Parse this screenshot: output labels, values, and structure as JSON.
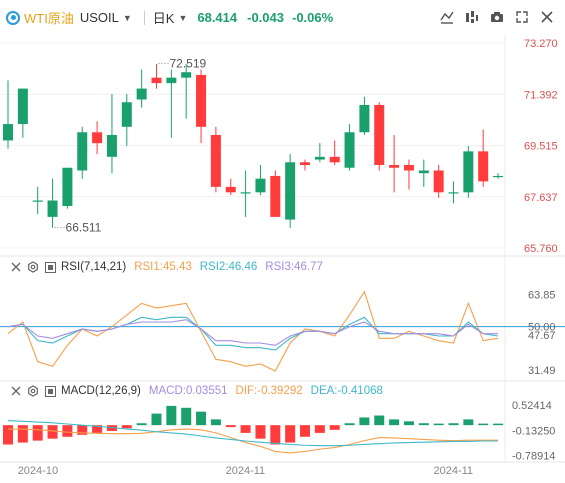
{
  "header": {
    "symbol_name": "WTI原油",
    "ticker": "USOIL",
    "timeframe": "日K",
    "price": "68.414",
    "change": "-0.043",
    "change_pct": "-0.06%",
    "colors": {
      "up": "#ff3b3b",
      "down": "#1aa06d",
      "accent": "#2a9bd9"
    },
    "icons": [
      "line-style-icon",
      "indicator-icon",
      "camera-icon",
      "expand-icon",
      "close-icon"
    ]
  },
  "rsi_legend": {
    "name": "RSI(7,14,21)",
    "rsi1": "RSI1:45.43",
    "rsi2": "RSI2:46.46",
    "rsi3": "RSI3:46.77"
  },
  "macd_legend": {
    "name": "MACD(12,26,9)",
    "macd": "MACD:0.03551",
    "dif": "DIF:-0.39292",
    "dea": "DEA:-0.41068"
  },
  "chart_data": [
    {
      "type": "candlestick",
      "name": "price",
      "ylim": [
        65.76,
        73.27
      ],
      "y_ticks": [
        "73.270",
        "71.392",
        "69.515",
        "67.637",
        "65.760"
      ],
      "annotations": [
        {
          "label": "72.519",
          "value": 72.519
        },
        {
          "label": "66.511",
          "value": 66.511
        }
      ],
      "candles": [
        {
          "o": 69.7,
          "h": 71.9,
          "l": 69.4,
          "c": 70.3
        },
        {
          "o": 70.3,
          "h": 71.6,
          "l": 69.8,
          "c": 71.6
        },
        {
          "o": 67.5,
          "h": 68.0,
          "l": 67.0,
          "c": 67.5
        },
        {
          "o": 66.9,
          "h": 68.3,
          "l": 66.5,
          "c": 67.5
        },
        {
          "o": 67.3,
          "h": 68.7,
          "l": 67.2,
          "c": 68.7
        },
        {
          "o": 68.6,
          "h": 70.2,
          "l": 68.3,
          "c": 70.0
        },
        {
          "o": 70.0,
          "h": 70.4,
          "l": 69.2,
          "c": 69.6
        },
        {
          "o": 69.1,
          "h": 71.4,
          "l": 68.5,
          "c": 69.9
        },
        {
          "o": 70.2,
          "h": 71.4,
          "l": 69.5,
          "c": 71.1
        },
        {
          "o": 71.2,
          "h": 72.3,
          "l": 70.9,
          "c": 71.6
        },
        {
          "o": 72.0,
          "h": 72.5,
          "l": 71.6,
          "c": 71.8
        },
        {
          "o": 71.8,
          "h": 72.3,
          "l": 69.8,
          "c": 72.0
        },
        {
          "o": 72.0,
          "h": 72.5,
          "l": 70.5,
          "c": 72.2
        },
        {
          "o": 72.1,
          "h": 72.3,
          "l": 69.6,
          "c": 70.2
        },
        {
          "o": 69.9,
          "h": 70.2,
          "l": 67.8,
          "c": 68.0
        },
        {
          "o": 68.0,
          "h": 68.3,
          "l": 67.7,
          "c": 67.8
        },
        {
          "o": 67.8,
          "h": 68.6,
          "l": 66.9,
          "c": 67.8
        },
        {
          "o": 67.8,
          "h": 68.8,
          "l": 67.7,
          "c": 68.3
        },
        {
          "o": 68.4,
          "h": 68.6,
          "l": 66.9,
          "c": 66.9
        },
        {
          "o": 66.8,
          "h": 69.2,
          "l": 66.5,
          "c": 68.9
        },
        {
          "o": 68.9,
          "h": 69.0,
          "l": 68.6,
          "c": 68.8
        },
        {
          "o": 69.0,
          "h": 69.6,
          "l": 68.9,
          "c": 69.1
        },
        {
          "o": 69.1,
          "h": 69.7,
          "l": 68.8,
          "c": 68.9
        },
        {
          "o": 68.7,
          "h": 70.3,
          "l": 68.6,
          "c": 70.0
        },
        {
          "o": 70.0,
          "h": 71.3,
          "l": 69.9,
          "c": 71.0
        },
        {
          "o": 71.0,
          "h": 71.1,
          "l": 68.6,
          "c": 68.8
        },
        {
          "o": 68.8,
          "h": 69.9,
          "l": 67.8,
          "c": 68.7
        },
        {
          "o": 68.8,
          "h": 69.0,
          "l": 67.9,
          "c": 68.6
        },
        {
          "o": 68.5,
          "h": 69.0,
          "l": 68.0,
          "c": 68.6
        },
        {
          "o": 68.6,
          "h": 68.8,
          "l": 67.6,
          "c": 67.8
        },
        {
          "o": 67.8,
          "h": 68.2,
          "l": 67.4,
          "c": 67.8
        },
        {
          "o": 67.8,
          "h": 69.5,
          "l": 67.6,
          "c": 69.3
        },
        {
          "o": 69.3,
          "h": 70.1,
          "l": 68.0,
          "c": 68.2
        },
        {
          "o": 68.4,
          "h": 68.5,
          "l": 68.3,
          "c": 68.4
        }
      ]
    },
    {
      "type": "line",
      "name": "RSI",
      "ylim": [
        28,
        70
      ],
      "y_ticks": [
        "63.85",
        "50.00",
        "47.67",
        "31.49"
      ],
      "reference_line": 50,
      "series": [
        {
          "name": "RSI1",
          "color": "#f5a04a",
          "values": [
            47,
            52,
            35,
            33,
            42,
            49,
            46,
            50,
            55,
            60,
            58,
            59,
            60,
            48,
            36,
            35,
            33,
            34,
            31,
            43,
            49,
            48,
            46,
            55,
            65,
            45,
            45,
            48,
            46,
            44,
            43,
            60,
            44,
            45
          ]
        },
        {
          "name": "RSI2",
          "color": "#3fb8c9",
          "values": [
            50,
            51,
            44,
            43,
            46,
            49,
            48,
            49,
            51,
            54,
            53,
            54,
            54,
            49,
            42,
            42,
            41,
            41,
            40,
            45,
            48,
            48,
            47,
            51,
            54,
            47,
            47,
            47,
            47,
            46,
            46,
            52,
            47,
            46
          ]
        },
        {
          "name": "RSI3",
          "color": "#a78ce0",
          "values": [
            50,
            51,
            46,
            45,
            47,
            49,
            48,
            49,
            51,
            52,
            52,
            52,
            53,
            49,
            44,
            44,
            43,
            43,
            42,
            46,
            48,
            48,
            47,
            50,
            52,
            48,
            47,
            47,
            47,
            47,
            46,
            51,
            47,
            47
          ]
        }
      ]
    },
    {
      "type": "bar+line",
      "name": "MACD",
      "ylim": [
        -0.85,
        0.6
      ],
      "y_ticks": [
        "0.52414",
        "-0.13250",
        "-0.78914"
      ],
      "histogram": [
        -0.5,
        -0.45,
        -0.4,
        -0.35,
        -0.3,
        -0.25,
        -0.2,
        -0.15,
        -0.08,
        0.05,
        0.3,
        0.5,
        0.45,
        0.35,
        0.15,
        -0.05,
        -0.2,
        -0.35,
        -0.5,
        -0.45,
        -0.3,
        -0.2,
        -0.12,
        0.05,
        0.2,
        0.25,
        0.15,
        0.1,
        0.05,
        0.04,
        0.05,
        0.15,
        0.04,
        0.04
      ],
      "series": [
        {
          "name": "DIF",
          "color": "#f5a04a",
          "values": [
            -0.1,
            -0.1,
            -0.12,
            -0.15,
            -0.18,
            -0.2,
            -0.21,
            -0.22,
            -0.22,
            -0.21,
            -0.17,
            -0.12,
            -0.1,
            -0.12,
            -0.2,
            -0.32,
            -0.45,
            -0.55,
            -0.68,
            -0.72,
            -0.68,
            -0.62,
            -0.58,
            -0.5,
            -0.4,
            -0.32,
            -0.33,
            -0.35,
            -0.37,
            -0.39,
            -0.4,
            -0.39,
            -0.39,
            -0.39
          ]
        },
        {
          "name": "DEA",
          "color": "#3fb8c9",
          "values": [
            0.12,
            0.1,
            0.08,
            0.06,
            0.03,
            0.0,
            -0.03,
            -0.06,
            -0.1,
            -0.13,
            -0.17,
            -0.2,
            -0.23,
            -0.28,
            -0.33,
            -0.37,
            -0.41,
            -0.44,
            -0.47,
            -0.5,
            -0.52,
            -0.53,
            -0.53,
            -0.52,
            -0.5,
            -0.48,
            -0.46,
            -0.45,
            -0.44,
            -0.43,
            -0.42,
            -0.42,
            -0.41,
            -0.41
          ]
        }
      ]
    }
  ],
  "x_axis": {
    "labels": [
      "2024-10",
      "2024-11",
      "2024-11"
    ],
    "label_index": [
      2,
      16,
      30
    ]
  }
}
